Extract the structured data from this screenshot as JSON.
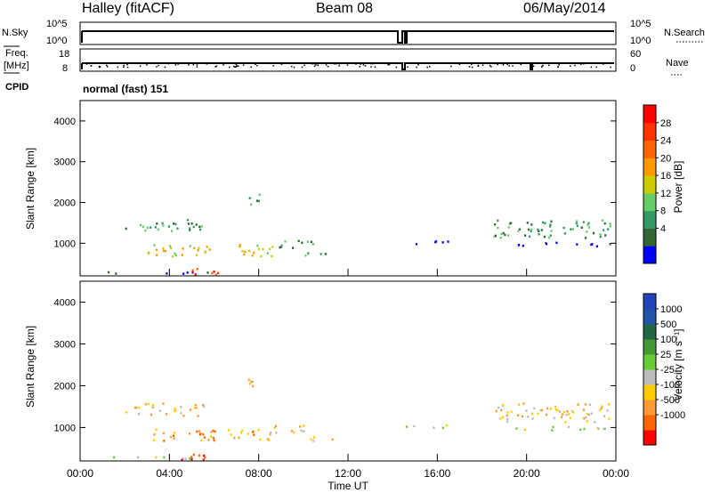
{
  "header": {
    "station": "Halley (fitACF)",
    "beam": "Beam 08",
    "date": "06/May/2014"
  },
  "strips": {
    "nsky_label": "N.Sky",
    "nsearch_label": "N.Search",
    "nsky_ticks": [
      "10^5",
      "10^0"
    ],
    "nsearch_ticks": [
      "10^5",
      "10^0"
    ],
    "freq_label": "Freq.",
    "freq_unit": "[MHz]",
    "freq_ticks": [
      "18",
      "8"
    ],
    "nave_label": "Nave",
    "nave_ticks": [
      "60",
      "0"
    ],
    "cpid_label": "CPID",
    "cpid_value": "normal (fast) 151"
  },
  "colors": {
    "power_scale": [
      "#0000ff",
      "#336633",
      "#339966",
      "#66cc66",
      "#cccc00",
      "#ff9900",
      "#ff6600",
      "#ff3300",
      "#ff0000"
    ],
    "velocity_scale": [
      "#2244bb",
      "#2255aa",
      "#226644",
      "#449933",
      "#66cc33",
      "#bbbbbb",
      "#ffcc00",
      "#ff9933",
      "#ff6600",
      "#ff0000"
    ]
  },
  "chart_data": [
    {
      "type": "heatmap",
      "name": "power",
      "ylabel": "Slant Range [km]",
      "xlabel": "",
      "yticks": [
        "1000",
        "2000",
        "3000",
        "4000"
      ],
      "ylim": [
        200,
        4500
      ],
      "colorbar_label": "Power [dB]",
      "colorbar_ticks": [
        "28",
        "24",
        "20",
        "16",
        "12",
        "8",
        "4"
      ],
      "colorbar_range": [
        0,
        32
      ]
    },
    {
      "type": "heatmap",
      "name": "velocity",
      "ylabel": "Slant Range [km]",
      "xlabel": "Time UT",
      "yticks": [
        "1000",
        "2000",
        "3000",
        "4000"
      ],
      "ylim": [
        200,
        4500
      ],
      "xticks": [
        "00:00",
        "04:00",
        "08:00",
        "12:00",
        "16:00",
        "20:00",
        "00:00"
      ],
      "xlim_hours": [
        0,
        24
      ],
      "colorbar_label": "Velocity [m s⁻¹]",
      "colorbar_ticks": [
        "1000",
        "500",
        "100",
        "25",
        "-25",
        "-100",
        "-500",
        "-1000"
      ]
    }
  ]
}
